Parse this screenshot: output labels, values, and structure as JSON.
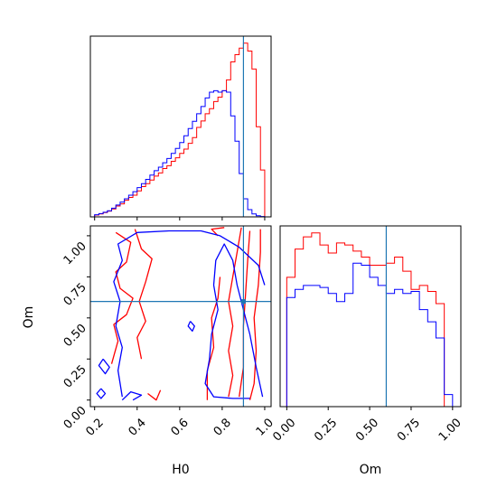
{
  "chart_data": [
    {
      "panel": "hist-H0",
      "type": "step-histogram",
      "x_range": [
        0.18,
        1.03
      ],
      "x_ticks": [
        "0.2",
        "0.4",
        "0.6",
        "0.8",
        "1.0"
      ],
      "truth_x": 0.9,
      "color_red": "#ff0000",
      "color_blue": "#0000ff",
      "color_truth": "#1f77b4",
      "bins": [
        0.2,
        0.22,
        0.24,
        0.26,
        0.28,
        0.3,
        0.32,
        0.34,
        0.36,
        0.38,
        0.4,
        0.42,
        0.44,
        0.46,
        0.48,
        0.5,
        0.52,
        0.54,
        0.56,
        0.58,
        0.6,
        0.62,
        0.64,
        0.66,
        0.68,
        0.7,
        0.72,
        0.74,
        0.76,
        0.78,
        0.8,
        0.82,
        0.84,
        0.86,
        0.88,
        0.9,
        0.92,
        0.94,
        0.96,
        0.98,
        1.0
      ],
      "series": [
        {
          "color": "red",
          "values": [
            0.5,
            0.8,
            1.2,
            1.6,
            2.2,
            3.0,
            3.6,
            4.6,
            5.4,
            6.0,
            7.2,
            8.4,
            9.2,
            10.2,
            11.3,
            12.2,
            13.4,
            14.2,
            15.4,
            16.4,
            17.6,
            18.8,
            20.4,
            22.0,
            24.8,
            26.6,
            28.6,
            30.0,
            32.0,
            33.2,
            35.0,
            38.0,
            43.0,
            45.0,
            46.8,
            48.2,
            46.0,
            41.0,
            25.0,
            13.0
          ]
        },
        {
          "color": "blue",
          "values": [
            0.6,
            0.9,
            1.3,
            1.7,
            2.4,
            3.3,
            4.1,
            5.0,
            6.0,
            7.0,
            8.1,
            9.2,
            10.4,
            11.6,
            12.8,
            13.8,
            15.0,
            16.2,
            17.6,
            19.0,
            20.6,
            22.5,
            24.5,
            26.5,
            28.6,
            30.6,
            33.0,
            34.6,
            35.0,
            34.6,
            35.0,
            34.6,
            28.0,
            21.0,
            12.0,
            5.0,
            2.0,
            0.8,
            0.3,
            0.1
          ]
        }
      ]
    },
    {
      "panel": "hist-Om",
      "type": "step-histogram",
      "x_range": [
        -0.04,
        1.05
      ],
      "x_ticks": [
        "0.00",
        "0.25",
        "0.50",
        "0.75",
        "1.00"
      ],
      "xlabel": "Om",
      "truth_x": 0.6,
      "bins": [
        0.0,
        0.05,
        0.1,
        0.15,
        0.2,
        0.25,
        0.3,
        0.35,
        0.4,
        0.45,
        0.5,
        0.55,
        0.6,
        0.65,
        0.7,
        0.75,
        0.8,
        0.85,
        0.9,
        0.95,
        1.0
      ],
      "series": [
        {
          "color": "red",
          "values": [
            3.2,
            3.9,
            4.2,
            4.3,
            4.0,
            3.8,
            4.05,
            4.0,
            3.85,
            3.7,
            3.5,
            3.5,
            3.55,
            3.7,
            3.35,
            2.9,
            3.0,
            2.85,
            2.55,
            0.0
          ]
        },
        {
          "color": "blue",
          "values": [
            2.7,
            2.9,
            3.0,
            3.0,
            2.95,
            2.8,
            2.6,
            2.8,
            3.55,
            3.5,
            3.2,
            3.0,
            2.8,
            2.9,
            2.8,
            2.85,
            2.4,
            2.1,
            1.7,
            0.3
          ]
        }
      ]
    },
    {
      "panel": "contour-H0-Om",
      "type": "contour",
      "x_range": [
        0.18,
        1.03
      ],
      "y_range": [
        -0.04,
        1.06
      ],
      "x_ticks": [
        "0.2",
        "0.4",
        "0.6",
        "0.8",
        "1.0"
      ],
      "y_ticks": [
        "0.00",
        "0.25",
        "0.50",
        "0.75",
        "1.00"
      ],
      "xlabel": "H0",
      "ylabel": "Om",
      "truth": [
        0.9,
        0.6
      ],
      "contours": [
        {
          "color": "red",
          "points": [
            [
              0.83,
              0.02
            ],
            [
              0.85,
              0.15
            ],
            [
              0.83,
              0.3
            ],
            [
              0.85,
              0.45
            ],
            [
              0.83,
              0.6
            ],
            [
              0.85,
              0.75
            ],
            [
              0.87,
              0.9
            ],
            [
              0.89,
              1.05
            ]
          ]
        },
        {
          "color": "red",
          "points": [
            [
              0.88,
              0.02
            ],
            [
              0.9,
              0.2
            ],
            [
              0.9,
              0.45
            ],
            [
              0.91,
              0.65
            ],
            [
              0.92,
              0.85
            ],
            [
              0.93,
              1.03
            ]
          ]
        },
        {
          "color": "red",
          "points": [
            [
              0.93,
              0.0
            ],
            [
              0.95,
              0.1
            ],
            [
              0.96,
              0.3
            ],
            [
              0.95,
              0.5
            ],
            [
              0.97,
              0.7
            ],
            [
              0.98,
              0.9
            ],
            [
              0.98,
              1.04
            ]
          ]
        },
        {
          "color": "red",
          "points": [
            [
              0.73,
              0.0
            ],
            [
              0.73,
              0.18
            ],
            [
              0.76,
              0.32
            ],
            [
              0.75,
              0.5
            ],
            [
              0.78,
              0.62
            ],
            [
              0.79,
              0.75
            ]
          ]
        },
        {
          "color": "red",
          "points": [
            [
              0.3,
              1.02
            ],
            [
              0.37,
              0.96
            ],
            [
              0.35,
              0.84
            ],
            [
              0.3,
              0.78
            ],
            [
              0.32,
              0.68
            ],
            [
              0.38,
              0.62
            ],
            [
              0.35,
              0.52
            ],
            [
              0.29,
              0.46
            ],
            [
              0.31,
              0.36
            ],
            [
              0.28,
              0.22
            ]
          ]
        },
        {
          "color": "red",
          "points": [
            [
              0.39,
              1.04
            ],
            [
              0.42,
              0.92
            ],
            [
              0.47,
              0.86
            ],
            [
              0.44,
              0.72
            ],
            [
              0.41,
              0.6
            ],
            [
              0.44,
              0.48
            ],
            [
              0.4,
              0.38
            ],
            [
              0.42,
              0.25
            ]
          ]
        },
        {
          "color": "red",
          "points": [
            [
              0.51,
              0.06
            ],
            [
              0.49,
              0.0
            ],
            [
              0.45,
              0.04
            ]
          ]
        },
        {
          "color": "red",
          "points": [
            [
              0.78,
              1.0
            ],
            [
              0.75,
              1.04
            ],
            [
              0.81,
              1.05
            ]
          ]
        },
        {
          "color": "blue",
          "points": [
            [
              0.33,
              0.02
            ],
            [
              0.31,
              0.18
            ],
            [
              0.33,
              0.32
            ],
            [
              0.3,
              0.45
            ],
            [
              0.32,
              0.6
            ],
            [
              0.29,
              0.72
            ],
            [
              0.33,
              0.85
            ],
            [
              0.31,
              0.95
            ],
            [
              0.4,
              1.02
            ],
            [
              0.55,
              1.03
            ],
            [
              0.7,
              1.03
            ],
            [
              0.79,
              1.0
            ],
            [
              0.88,
              0.93
            ],
            [
              0.97,
              0.82
            ],
            [
              1.0,
              0.7
            ]
          ]
        },
        {
          "color": "blue",
          "points": [
            [
              0.99,
              0.02
            ],
            [
              0.96,
              0.2
            ],
            [
              0.93,
              0.4
            ],
            [
              0.9,
              0.55
            ],
            [
              0.87,
              0.7
            ],
            [
              0.85,
              0.85
            ],
            [
              0.81,
              0.95
            ],
            [
              0.77,
              0.85
            ],
            [
              0.76,
              0.7
            ],
            [
              0.78,
              0.55
            ],
            [
              0.75,
              0.4
            ],
            [
              0.74,
              0.25
            ],
            [
              0.72,
              0.1
            ],
            [
              0.76,
              0.02
            ],
            [
              0.85,
              0.01
            ],
            [
              0.93,
              0.01
            ]
          ]
        },
        {
          "color": "blue",
          "points": [
            [
              0.24,
              0.25
            ],
            [
              0.27,
              0.2
            ],
            [
              0.25,
              0.16
            ],
            [
              0.22,
              0.21
            ],
            [
              0.24,
              0.25
            ]
          ]
        },
        {
          "color": "blue",
          "points": [
            [
              0.23,
              0.07
            ],
            [
              0.25,
              0.04
            ],
            [
              0.23,
              0.01
            ],
            [
              0.21,
              0.04
            ],
            [
              0.23,
              0.07
            ]
          ]
        },
        {
          "color": "blue",
          "points": [
            [
              0.33,
              0.0
            ],
            [
              0.37,
              0.05
            ],
            [
              0.42,
              0.03
            ],
            [
              0.38,
              0.0
            ]
          ]
        },
        {
          "color": "blue",
          "points": [
            [
              0.65,
              0.48
            ],
            [
              0.67,
              0.45
            ],
            [
              0.66,
              0.42
            ],
            [
              0.64,
              0.45
            ],
            [
              0.65,
              0.48
            ]
          ]
        }
      ]
    }
  ]
}
